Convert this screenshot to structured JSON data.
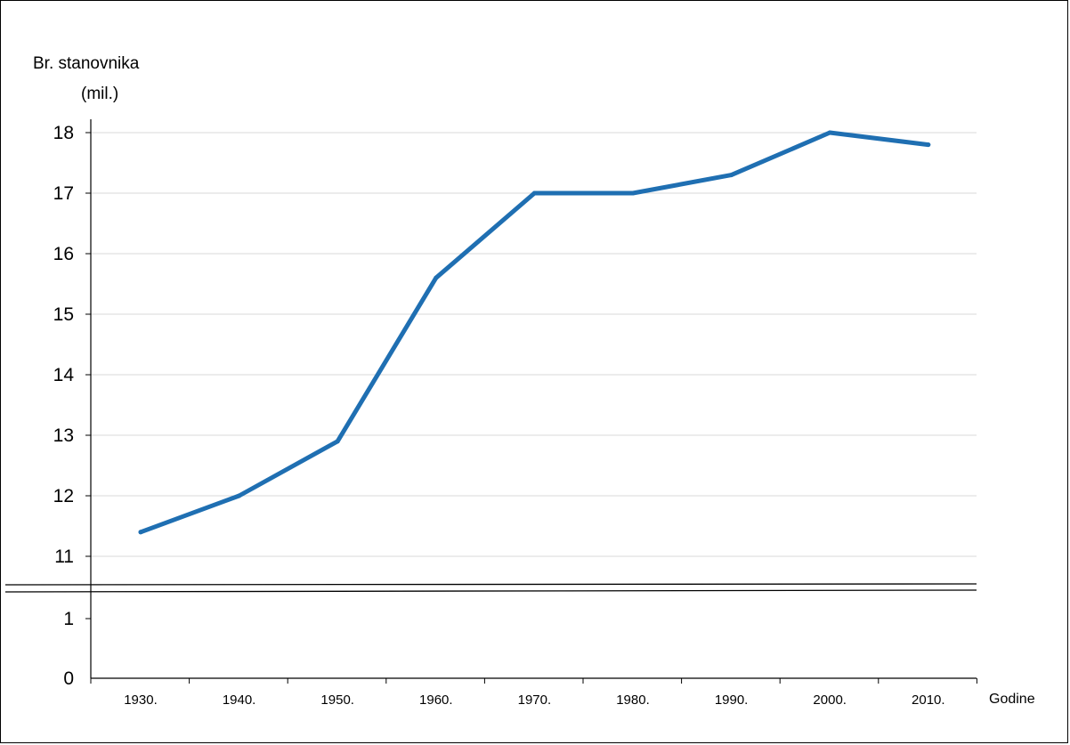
{
  "chart_data": {
    "type": "line",
    "ylabel_line1": "Br. stanovnika",
    "ylabel_line2": "(mil.)",
    "xlabel": "Godine",
    "categories": [
      "1930.",
      "1940.",
      "1950.",
      "1960.",
      "1970.",
      "1980.",
      "1990.",
      "2000.",
      "2010."
    ],
    "series": [
      {
        "values": [
          11.4,
          12.0,
          12.9,
          15.6,
          17.0,
          17.0,
          17.3,
          18.0,
          17.8
        ]
      }
    ],
    "y_ticks_upper": [
      "11",
      "12",
      "13",
      "14",
      "15",
      "16",
      "17",
      "18"
    ],
    "y_ticks_lower": [
      "0",
      "1"
    ],
    "ylim_upper": [
      11,
      18
    ],
    "ylim_lower": [
      0,
      1
    ],
    "axis_break": true,
    "grid": true,
    "line_color": "#1f6fb2"
  }
}
